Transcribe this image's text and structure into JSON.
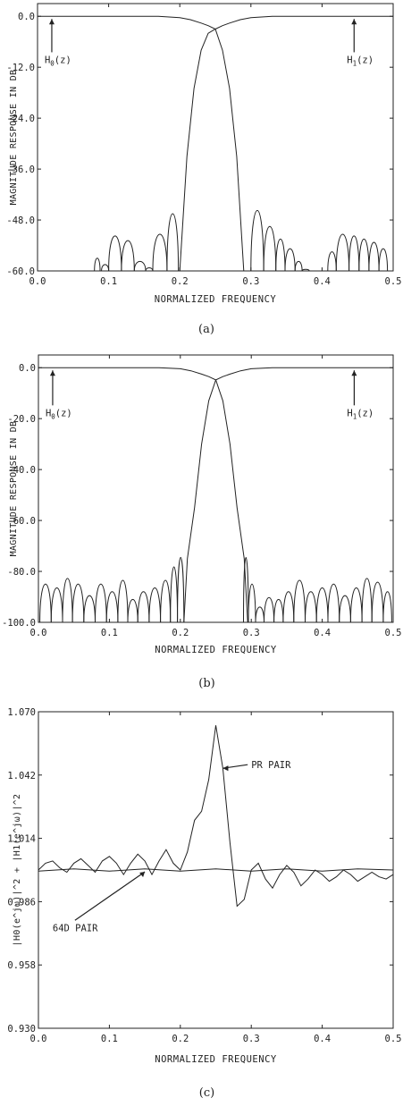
{
  "colors": {
    "ink": "#222222",
    "background": "#ffffff"
  },
  "chart_data": [
    {
      "type": "line",
      "caption": "(a)",
      "xlabel": "NORMALIZED FREQUENCY",
      "ylabel": "MAGNITUDE RESPONSE IN DB",
      "xlim": [
        0,
        0.5
      ],
      "ylim": [
        -60,
        3
      ],
      "xticks": [
        "0.0",
        "0.1",
        "0.2",
        "0.3",
        "0.4",
        "0.5"
      ],
      "yticks": [
        "0.0",
        "-12.0",
        "-24.0",
        "-36.0",
        "-48.0",
        "-60.0"
      ],
      "series": [
        {
          "name": "H0(z)",
          "x": [
            0,
            0.17,
            0.2,
            0.215,
            0.23,
            0.24,
            0.25,
            0.26,
            0.27,
            0.28,
            0.29,
            0.3,
            0.5
          ],
          "y": [
            0,
            0,
            -0.3,
            -0.8,
            -1.6,
            -2.2,
            -3,
            -8,
            -17,
            -33,
            -60,
            -60,
            -60
          ],
          "stopband_lobes": [
            [
              0.3,
              0.318,
              -41
            ],
            [
              0.318,
              0.335,
              -46
            ],
            [
              0.335,
              0.348,
              -50
            ],
            [
              0.348,
              0.362,
              -53
            ],
            [
              0.362,
              0.372,
              -57
            ],
            [
              0.372,
              0.382,
              -59.5
            ],
            [
              0.408,
              0.42,
              -54
            ],
            [
              0.42,
              0.438,
              -48.5
            ],
            [
              0.438,
              0.452,
              -49
            ],
            [
              0.452,
              0.466,
              -50
            ],
            [
              0.466,
              0.48,
              -51
            ],
            [
              0.48,
              0.492,
              -53
            ]
          ]
        },
        {
          "name": "H1(z)",
          "x": [
            0,
            0.2,
            0.21,
            0.22,
            0.23,
            0.24,
            0.25,
            0.26,
            0.27,
            0.285,
            0.3,
            0.33,
            0.5
          ],
          "y": [
            -60,
            -60,
            -33,
            -17,
            -8,
            -4,
            -3,
            -2.2,
            -1.6,
            -0.8,
            -0.3,
            0,
            0
          ],
          "stopband_lobes": [
            [
              0.08,
              0.088,
              -56
            ],
            [
              0.09,
              0.1,
              -58
            ],
            [
              0.1,
              0.118,
              -49
            ],
            [
              0.118,
              0.136,
              -50.5
            ],
            [
              0.136,
              0.152,
              -57
            ],
            [
              0.152,
              0.162,
              -59
            ],
            [
              0.162,
              0.182,
              -48.5
            ],
            [
              0.182,
              0.198,
              -42
            ]
          ]
        }
      ],
      "annotations": [
        {
          "text": "H",
          "subscript": "0",
          "suffix": "(z)",
          "x": 0.01,
          "y": -11
        },
        {
          "text": "H",
          "subscript": "1",
          "suffix": "(z)",
          "x": 0.435,
          "y": -11
        }
      ]
    },
    {
      "type": "line",
      "caption": "(b)",
      "xlabel": "NORMALIZED FREQUENCY",
      "ylabel": "MAGNITUDE RESPONSE IN DB",
      "xlim": [
        0,
        0.5
      ],
      "ylim": [
        -100,
        5
      ],
      "xticks": [
        "0.0",
        "0.1",
        "0.2",
        "0.3",
        "0.4",
        "0.5"
      ],
      "yticks": [
        "0.0",
        "-20.0",
        "-40.0",
        "-60.0",
        "-80.0",
        "-100.0"
      ],
      "series": [
        {
          "name": "H0(z)",
          "x": [
            0,
            0.17,
            0.2,
            0.215,
            0.23,
            0.24,
            0.25,
            0.26,
            0.27,
            0.28,
            0.29,
            0.295,
            0.5
          ],
          "y": [
            0,
            0,
            -0.4,
            -1.2,
            -2.5,
            -3.5,
            -4.8,
            -13,
            -30,
            -55,
            -75,
            -100,
            -100
          ],
          "stopband_lobes": [
            [
              0.289,
              0.296,
              -66
            ],
            [
              0.296,
              0.306,
              -80
            ],
            [
              0.306,
              0.318,
              -92
            ],
            [
              0.318,
              0.332,
              -87
            ],
            [
              0.332,
              0.345,
              -88
            ],
            [
              0.345,
              0.36,
              -84
            ],
            [
              0.36,
              0.376,
              -78
            ],
            [
              0.376,
              0.392,
              -84
            ],
            [
              0.392,
              0.408,
              -82
            ],
            [
              0.408,
              0.424,
              -80
            ],
            [
              0.424,
              0.44,
              -86
            ],
            [
              0.44,
              0.456,
              -82
            ],
            [
              0.456,
              0.47,
              -77
            ],
            [
              0.47,
              0.486,
              -79
            ],
            [
              0.486,
              0.498,
              -84
            ]
          ]
        },
        {
          "name": "H1(z)",
          "x": [
            0,
            0.205,
            0.21,
            0.22,
            0.23,
            0.24,
            0.25,
            0.26,
            0.27,
            0.285,
            0.3,
            0.33,
            0.5
          ],
          "y": [
            -100,
            -100,
            -75,
            -55,
            -30,
            -13,
            -4.8,
            -3.5,
            -2.5,
            -1.2,
            -0.4,
            0,
            0
          ],
          "stopband_lobes": [
            [
              0.002,
              0.018,
              -80
            ],
            [
              0.018,
              0.034,
              -82
            ],
            [
              0.034,
              0.048,
              -77
            ],
            [
              0.048,
              0.064,
              -80
            ],
            [
              0.064,
              0.08,
              -86
            ],
            [
              0.08,
              0.096,
              -80
            ],
            [
              0.096,
              0.112,
              -84
            ],
            [
              0.112,
              0.126,
              -78
            ],
            [
              0.126,
              0.14,
              -88
            ],
            [
              0.14,
              0.156,
              -84
            ],
            [
              0.156,
              0.172,
              -82
            ],
            [
              0.172,
              0.186,
              -78
            ],
            [
              0.186,
              0.196,
              -71
            ],
            [
              0.196,
              0.205,
              -66
            ]
          ]
        }
      ],
      "annotations": [
        {
          "text": "H",
          "subscript": "0",
          "suffix": "(z)",
          "x": 0.01,
          "y": -19
        },
        {
          "text": "H",
          "subscript": "1",
          "suffix": "(z)",
          "x": 0.435,
          "y": -19
        }
      ]
    },
    {
      "type": "line",
      "caption": "(c)",
      "xlabel": "NORMALIZED FREQUENCY",
      "ylabel": "|H0(e^jω)|^2 + |H1(e^jω)|^2",
      "xlim": [
        0,
        0.5
      ],
      "ylim": [
        0.93,
        1.07
      ],
      "xticks": [
        "0.0",
        "0.1",
        "0.2",
        "0.3",
        "0.4",
        "0.5"
      ],
      "yticks": [
        "1.070",
        "1.042",
        "1.014",
        "0.986",
        "0.958",
        "0.930"
      ],
      "series": [
        {
          "name": "PR PAIR",
          "x": [
            0,
            0.01,
            0.02,
            0.03,
            0.04,
            0.05,
            0.06,
            0.07,
            0.08,
            0.09,
            0.1,
            0.11,
            0.12,
            0.13,
            0.14,
            0.15,
            0.16,
            0.17,
            0.18,
            0.19,
            0.2,
            0.21,
            0.22,
            0.23,
            0.24,
            0.25,
            0.26,
            0.27,
            0.28,
            0.29,
            0.3,
            0.31,
            0.32,
            0.33,
            0.34,
            0.35,
            0.36,
            0.37,
            0.38,
            0.39,
            0.4,
            0.41,
            0.42,
            0.43,
            0.44,
            0.45,
            0.46,
            0.47,
            0.48,
            0.49,
            0.5
          ],
          "y": [
            1.0,
            1.003,
            1.004,
            1.001,
            0.999,
            1.003,
            1.005,
            1.002,
            0.999,
            1.004,
            1.006,
            1.003,
            0.998,
            1.003,
            1.007,
            1.004,
            0.998,
            1.004,
            1.009,
            1.003,
            1.0,
            1.008,
            1.022,
            1.026,
            1.04,
            1.064,
            1.045,
            1.012,
            0.984,
            0.987,
            1.0,
            1.003,
            0.996,
            0.992,
            0.998,
            1.002,
            0.999,
            0.993,
            0.996,
            1.0,
            0.998,
            0.995,
            0.997,
            1.0,
            0.998,
            0.995,
            0.997,
            0.999,
            0.997,
            0.996,
            0.998
          ]
        },
        {
          "name": "64D PAIR",
          "x": [
            0,
            0.05,
            0.1,
            0.15,
            0.2,
            0.25,
            0.3,
            0.35,
            0.4,
            0.45,
            0.5
          ],
          "y": [
            0.9995,
            1.0005,
            0.9995,
            1.0005,
            0.9995,
            1.0005,
            0.9995,
            1.0005,
            0.9995,
            1.0005,
            1.0
          ]
        }
      ],
      "annotations": [
        {
          "text": "PR PAIR",
          "x": 0.3,
          "y": 1.045
        },
        {
          "text": "64D PAIR",
          "x": 0.02,
          "y": 0.973
        }
      ]
    }
  ]
}
